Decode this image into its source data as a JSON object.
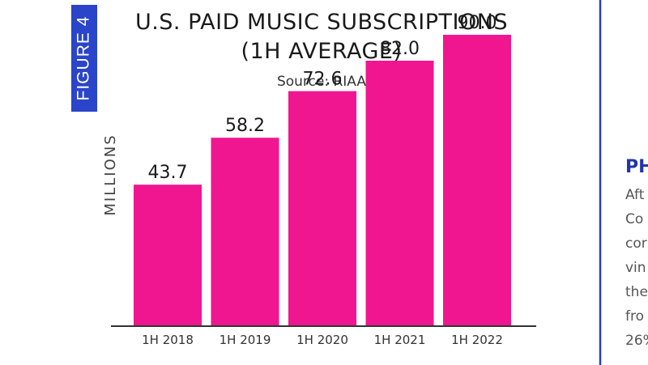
{
  "figure_tag": "FIGURE 4",
  "colors": {
    "bar": "#f0168f",
    "tag_bg": "#2a45c9",
    "divider": "#2a3dc0",
    "axis": "#333333"
  },
  "chart_data": {
    "type": "bar",
    "title_lines": [
      "U.S. PAID MUSIC SUBSCRIPTIONS",
      "(1H AVERAGE)"
    ],
    "subtitle": "Source: RIAA",
    "ylabel": "MILLIONS",
    "xlabel": "",
    "categories": [
      "1H 2018",
      "1H 2019",
      "1H 2020",
      "1H 2021",
      "1H 2022"
    ],
    "values": [
      43.7,
      58.2,
      72.6,
      82.0,
      90.0
    ],
    "value_labels": [
      "43.7",
      "58.2",
      "72.6",
      "82.0",
      "90.0"
    ],
    "ylim": [
      0,
      100
    ],
    "grid": false,
    "legend": "none"
  },
  "side_panel": {
    "heading": "PH",
    "lines": [
      "Aft",
      "Co",
      "cor",
      "vin",
      "the",
      "fro",
      "26%"
    ]
  }
}
